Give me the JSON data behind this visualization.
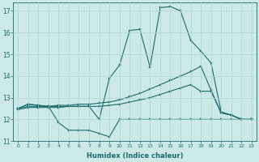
{
  "xlabel": "Humidex (Indice chaleur)",
  "ylabel": "",
  "xlim": [
    -0.5,
    23.5
  ],
  "ylim": [
    11,
    17.4
  ],
  "yticks": [
    11,
    12,
    13,
    14,
    15,
    16,
    17
  ],
  "xticks": [
    0,
    1,
    2,
    3,
    4,
    5,
    6,
    7,
    8,
    9,
    10,
    11,
    12,
    13,
    14,
    15,
    16,
    17,
    18,
    19,
    20,
    21,
    22,
    23
  ],
  "xtick_labels": [
    "0",
    "1",
    "2",
    "3",
    "4",
    "5",
    "6",
    "7",
    "8",
    "9",
    "10",
    "11",
    "12",
    "13",
    "14",
    "15",
    "16",
    "17",
    "18",
    "19",
    "20",
    "21",
    "22",
    "23"
  ],
  "background_color": "#cce9e7",
  "grid_color": "#aad4d0",
  "line_color": "#1a6b6b",
  "line1_x": [
    0,
    1,
    2,
    3,
    4,
    5,
    6,
    7,
    8,
    9,
    10,
    11,
    12,
    13,
    14,
    15,
    16,
    17,
    18,
    19,
    20,
    21,
    22,
    23
  ],
  "line1_y": [
    12.5,
    12.7,
    12.65,
    12.6,
    11.85,
    11.5,
    11.5,
    11.5,
    11.35,
    11.2,
    12.0,
    12.0,
    12.0,
    12.0,
    12.0,
    12.0,
    12.0,
    12.0,
    12.0,
    12.0,
    12.0,
    12.0,
    12.0,
    12.0
  ],
  "line2_x": [
    0,
    1,
    2,
    3,
    4,
    5,
    6,
    7,
    8,
    9,
    10,
    11,
    12,
    13,
    14,
    15,
    16,
    17,
    18,
    19,
    20,
    21,
    22,
    23
  ],
  "line2_y": [
    12.5,
    12.7,
    12.65,
    12.6,
    12.6,
    12.6,
    12.6,
    12.6,
    12.0,
    13.9,
    14.5,
    16.1,
    16.15,
    14.4,
    17.15,
    17.2,
    17.0,
    15.65,
    15.15,
    14.6,
    12.35,
    12.2,
    12.0,
    12.0
  ],
  "line3_x": [
    0,
    1,
    2,
    3,
    4,
    5,
    6,
    7,
    8,
    9,
    10,
    11,
    12,
    13,
    14,
    15,
    16,
    17,
    18,
    19,
    20,
    21,
    22,
    23
  ],
  "line3_y": [
    12.5,
    12.6,
    12.6,
    12.6,
    12.65,
    12.65,
    12.7,
    12.7,
    12.75,
    12.8,
    12.9,
    13.05,
    13.2,
    13.4,
    13.6,
    13.8,
    14.0,
    14.2,
    14.45,
    13.35,
    12.3,
    12.2,
    12.0,
    12.0
  ],
  "line4_x": [
    0,
    1,
    2,
    3,
    4,
    5,
    6,
    7,
    8,
    9,
    10,
    11,
    12,
    13,
    14,
    15,
    16,
    17,
    18,
    19,
    20,
    21,
    22,
    23
  ],
  "line4_y": [
    12.45,
    12.55,
    12.55,
    12.55,
    12.55,
    12.6,
    12.6,
    12.6,
    12.6,
    12.65,
    12.7,
    12.8,
    12.9,
    13.0,
    13.15,
    13.3,
    13.45,
    13.6,
    13.3,
    13.3,
    12.3,
    12.2,
    12.0,
    12.0
  ]
}
